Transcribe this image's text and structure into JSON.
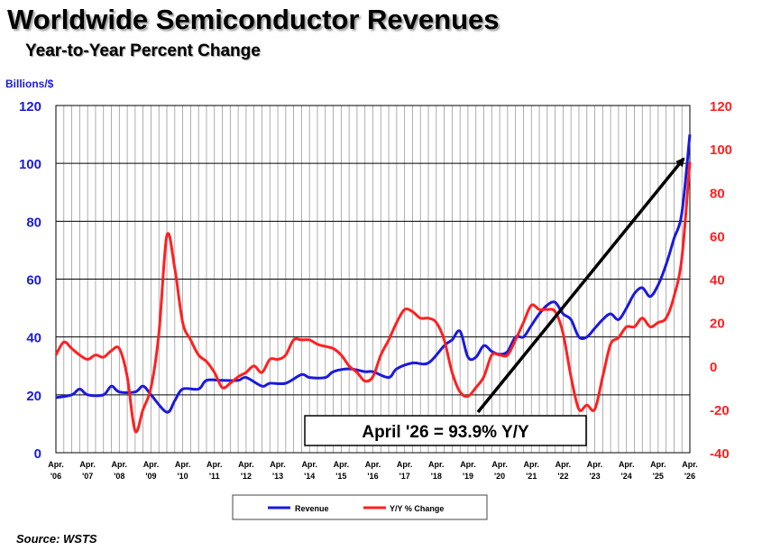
{
  "title": "Worldwide Semiconductor Revenues",
  "subtitle": "Year-to-Year Percent Change",
  "source": "Source: WSTS",
  "chart_data": {
    "type": "line",
    "title": "Worldwide Semiconductor Revenues",
    "subtitle": "Year-to-Year Percent Change",
    "y_left": {
      "label": "Billions/$",
      "range": [
        0,
        120
      ],
      "ticks": [
        "0",
        "20",
        "40",
        "60",
        "80",
        "100",
        "120"
      ],
      "color": "#1a1adc"
    },
    "y_right": {
      "label": "",
      "range": [
        -40,
        120
      ],
      "ticks": [
        "-40",
        "-20",
        "0",
        "20",
        "40",
        "60",
        "80",
        "100",
        "120"
      ],
      "color": "#ff2020"
    },
    "x_range": [
      2006.25,
      2026.25
    ],
    "x_ticks": [
      {
        "top": "Apr.",
        "bottom": "'06"
      },
      {
        "top": "Apr.",
        "bottom": "'07"
      },
      {
        "top": "Apr.",
        "bottom": "'08"
      },
      {
        "top": "Apr.",
        "bottom": "'09"
      },
      {
        "top": "Apr.",
        "bottom": "'10"
      },
      {
        "top": "Apr.",
        "bottom": "'11"
      },
      {
        "top": "Apr.",
        "bottom": "'12"
      },
      {
        "top": "Apr.",
        "bottom": "'13"
      },
      {
        "top": "Apr.",
        "bottom": "'14"
      },
      {
        "top": "Apr.",
        "bottom": "'15"
      },
      {
        "top": "Apr.",
        "bottom": "'16"
      },
      {
        "top": "Apr.",
        "bottom": "'17"
      },
      {
        "top": "Apr.",
        "bottom": "'18"
      },
      {
        "top": "Apr.",
        "bottom": "'19"
      },
      {
        "top": "Apr.",
        "bottom": "'20"
      },
      {
        "top": "Apr.",
        "bottom": "'21"
      },
      {
        "top": "Apr.",
        "bottom": "'22"
      },
      {
        "top": "Apr.",
        "bottom": "'23"
      },
      {
        "top": "Apr.",
        "bottom": "'24"
      },
      {
        "top": "Apr.",
        "bottom": "'25"
      },
      {
        "top": "Apr.",
        "bottom": "'26"
      }
    ],
    "grid": true,
    "legend_position": "bottom",
    "annotation": "April '26 = 93.9% Y/Y",
    "series": [
      {
        "name": "Revenue",
        "axis": "left",
        "color": "#1a1adc",
        "x": [
          2006.25,
          2006.75,
          2007.0,
          2007.25,
          2007.75,
          2008.0,
          2008.25,
          2008.75,
          2009.0,
          2009.25,
          2009.75,
          2010.0,
          2010.25,
          2010.75,
          2011.0,
          2011.5,
          2012.0,
          2012.25,
          2012.75,
          2013.0,
          2013.5,
          2014.0,
          2014.25,
          2014.75,
          2015.0,
          2015.5,
          2016.0,
          2016.25,
          2016.75,
          2017.0,
          2017.5,
          2018.0,
          2018.5,
          2018.75,
          2019.0,
          2019.25,
          2019.5,
          2019.75,
          2020.0,
          2020.25,
          2020.5,
          2020.75,
          2021.0,
          2021.25,
          2021.5,
          2021.75,
          2022.0,
          2022.25,
          2022.5,
          2022.75,
          2023.0,
          2023.25,
          2023.5,
          2023.75,
          2024.0,
          2024.25,
          2024.5,
          2024.75,
          2025.0,
          2025.25,
          2025.5,
          2025.75,
          2026.0,
          2026.25
        ],
        "values": [
          19,
          20,
          22,
          20,
          20,
          23,
          21,
          21,
          23,
          20,
          14,
          18,
          22,
          22,
          25,
          25,
          25,
          26,
          23,
          24,
          24,
          27,
          26,
          26,
          28,
          29,
          28,
          28,
          26,
          29,
          31,
          31,
          37,
          39,
          42,
          33,
          33,
          37,
          35,
          34,
          35,
          40,
          40,
          44,
          48,
          51,
          52,
          48,
          46,
          40,
          40,
          43,
          46,
          48,
          46,
          50,
          55,
          57,
          54,
          58,
          65,
          74,
          83,
          110
        ]
      },
      {
        "name": "Y/Y % Change",
        "axis": "right",
        "color": "#ff2020",
        "x": [
          2006.25,
          2006.5,
          2006.75,
          2007.0,
          2007.25,
          2007.5,
          2007.75,
          2008.0,
          2008.25,
          2008.5,
          2008.75,
          2009.0,
          2009.25,
          2009.5,
          2009.75,
          2010.0,
          2010.25,
          2010.5,
          2010.75,
          2011.0,
          2011.25,
          2011.5,
          2011.75,
          2012.0,
          2012.25,
          2012.5,
          2012.75,
          2013.0,
          2013.25,
          2013.5,
          2013.75,
          2014.0,
          2014.25,
          2014.5,
          2014.75,
          2015.0,
          2015.25,
          2015.5,
          2015.75,
          2016.0,
          2016.25,
          2016.5,
          2016.75,
          2017.0,
          2017.25,
          2017.5,
          2017.75,
          2018.0,
          2018.25,
          2018.5,
          2018.75,
          2019.0,
          2019.25,
          2019.5,
          2019.75,
          2020.0,
          2020.25,
          2020.5,
          2020.75,
          2021.0,
          2021.25,
          2021.5,
          2021.75,
          2022.0,
          2022.25,
          2022.5,
          2022.75,
          2023.0,
          2023.25,
          2023.5,
          2023.75,
          2024.0,
          2024.25,
          2024.5,
          2024.75,
          2025.0,
          2025.25,
          2025.5,
          2025.75,
          2026.0,
          2026.25
        ],
        "values": [
          5,
          11,
          8,
          5,
          3,
          5,
          4,
          7,
          8,
          -5,
          -30,
          -20,
          -10,
          15,
          60,
          45,
          20,
          12,
          5,
          2,
          -3,
          -10,
          -8,
          -5,
          -3,
          0,
          -3,
          3,
          3,
          5,
          12,
          12,
          12,
          10,
          9,
          8,
          5,
          0,
          -3,
          -7,
          -5,
          5,
          12,
          20,
          26,
          25,
          22,
          22,
          20,
          12,
          -3,
          -12,
          -14,
          -10,
          -5,
          5,
          5,
          5,
          12,
          20,
          28,
          26,
          26,
          25,
          15,
          -5,
          -20,
          -18,
          -20,
          -5,
          10,
          13,
          18,
          18,
          22,
          18,
          20,
          22,
          32,
          50,
          94
        ]
      }
    ]
  },
  "legend": {
    "revenue_label": "Revenue",
    "yoy_label": "Y/Y % Change"
  }
}
